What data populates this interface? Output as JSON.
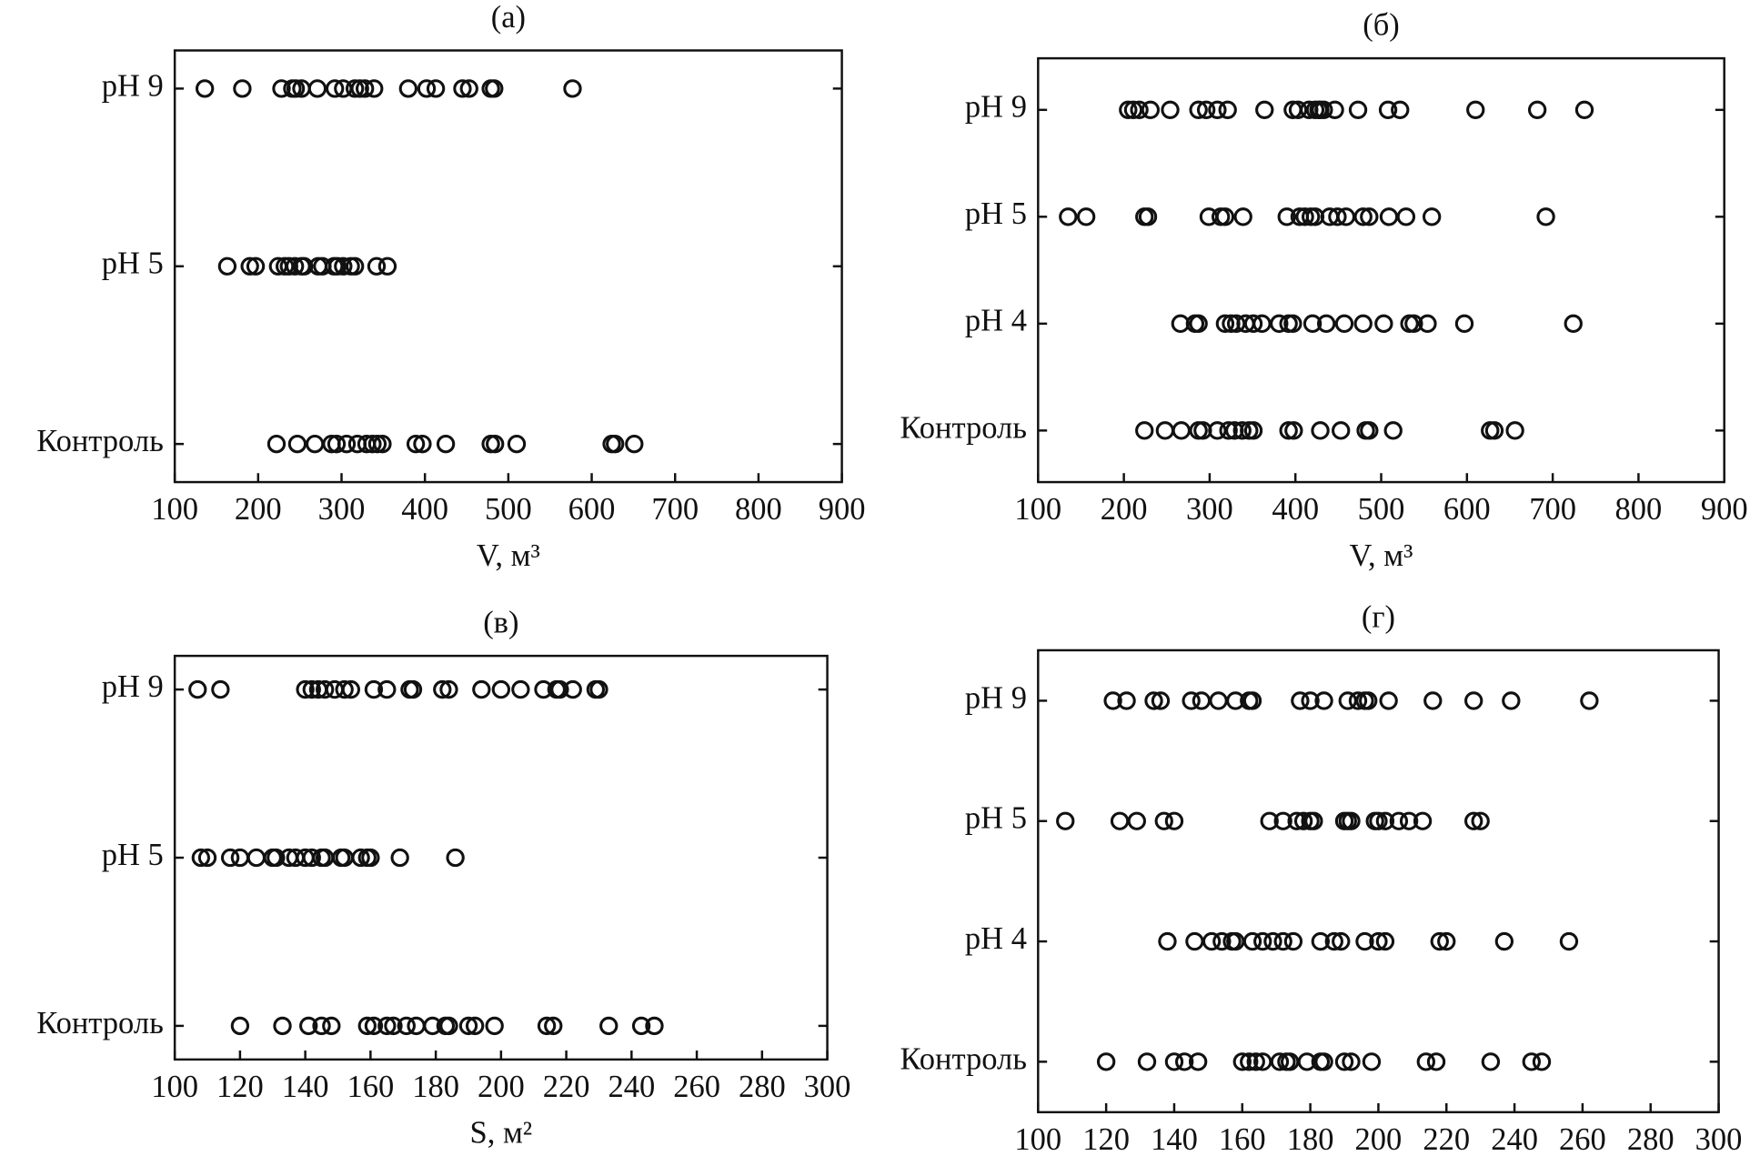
{
  "chart_data": [
    {
      "type": "strip",
      "title": "(а)",
      "x_label": "V, м³",
      "categories": [
        "pH 9",
        "pH 5",
        "Контроль"
      ],
      "values": [
        [
          136,
          181,
          228,
          241,
          245,
          252,
          271,
          292,
          302,
          316,
          322,
          328,
          339,
          380,
          402,
          413,
          445,
          453,
          479,
          483,
          577
        ],
        [
          163,
          190,
          197,
          224,
          232,
          237,
          244,
          252,
          255,
          272,
          277,
          291,
          295,
          302,
          311,
          316,
          342,
          355
        ],
        [
          222,
          247,
          268,
          288,
          294,
          306,
          319,
          330,
          337,
          343,
          349,
          389,
          397,
          425,
          479,
          484,
          510,
          624,
          628,
          651
        ]
      ],
      "xlim": [
        100,
        900
      ],
      "xticks": [
        100,
        200,
        300,
        400,
        500,
        600,
        700,
        800,
        900
      ]
    },
    {
      "type": "strip",
      "title": "(б)",
      "x_label": "V, м³",
      "categories": [
        "pH 9",
        "pH 5",
        "pH 4",
        "Контроль"
      ],
      "values": [
        [
          205,
          211,
          218,
          231,
          254,
          287,
          296,
          309,
          321,
          364,
          397,
          403,
          416,
          423,
          427,
          429,
          433,
          446,
          473,
          508,
          522,
          610,
          682,
          737
        ],
        [
          135,
          156,
          224,
          228,
          299,
          313,
          318,
          339,
          390,
          405,
          411,
          418,
          423,
          440,
          449,
          459,
          479,
          486,
          509,
          529,
          559,
          692
        ],
        [
          266,
          283,
          287,
          318,
          325,
          331,
          342,
          351,
          361,
          381,
          392,
          397,
          420,
          436,
          457,
          479,
          503,
          533,
          538,
          554,
          597,
          724
        ],
        [
          224,
          248,
          267,
          287,
          292,
          309,
          322,
          329,
          338,
          346,
          351,
          392,
          398,
          429,
          453,
          482,
          486,
          514,
          627,
          632,
          656
        ]
      ],
      "xlim": [
        100,
        900
      ],
      "xticks": [
        100,
        200,
        300,
        400,
        500,
        600,
        700,
        800,
        900
      ]
    },
    {
      "type": "strip",
      "title": "(в)",
      "x_label": "S, м²",
      "categories": [
        "pH 9",
        "pH 5",
        "Контроль"
      ],
      "values": [
        [
          107,
          114,
          140,
          142,
          144,
          146,
          149,
          152,
          154,
          161,
          165,
          172,
          173,
          182,
          184,
          194,
          200,
          206,
          213,
          217,
          218,
          222,
          229,
          230
        ],
        [
          108,
          110,
          117,
          120,
          125,
          130,
          131,
          135,
          137,
          140,
          142,
          145,
          146,
          151,
          152,
          157,
          159,
          160,
          169,
          186
        ],
        [
          120,
          133,
          141,
          145,
          148,
          159,
          161,
          165,
          167,
          171,
          174,
          179,
          183,
          184,
          190,
          192,
          198,
          214,
          216,
          233,
          243,
          247
        ]
      ],
      "xlim": [
        100,
        300
      ],
      "xticks": [
        100,
        120,
        140,
        160,
        180,
        200,
        220,
        240,
        260,
        280,
        300
      ]
    },
    {
      "type": "strip",
      "title": "(г)",
      "x_label": "S, м²",
      "categories": [
        "pH 9",
        "pH 5",
        "pH 4",
        "Контроль"
      ],
      "values": [
        [
          122,
          126,
          134,
          136,
          145,
          148,
          153,
          158,
          162,
          163,
          177,
          180,
          184,
          191,
          194,
          196,
          197,
          203,
          216,
          228,
          239,
          262
        ],
        [
          108,
          124,
          129,
          137,
          140,
          168,
          172,
          176,
          178,
          180,
          181,
          190,
          191,
          192,
          199,
          200,
          202,
          206,
          209,
          213,
          228,
          230
        ],
        [
          138,
          146,
          151,
          154,
          157,
          158,
          163,
          166,
          169,
          172,
          175,
          183,
          187,
          189,
          196,
          200,
          202,
          218,
          220,
          237,
          256
        ],
        [
          120,
          132,
          140,
          143,
          147,
          160,
          162,
          164,
          166,
          171,
          173,
          174,
          179,
          183,
          184,
          190,
          192,
          198,
          214,
          217,
          233,
          245,
          248
        ]
      ],
      "xlim": [
        100,
        300
      ],
      "xticks": [
        100,
        120,
        140,
        160,
        180,
        200,
        220,
        240,
        260,
        280,
        300
      ]
    }
  ]
}
